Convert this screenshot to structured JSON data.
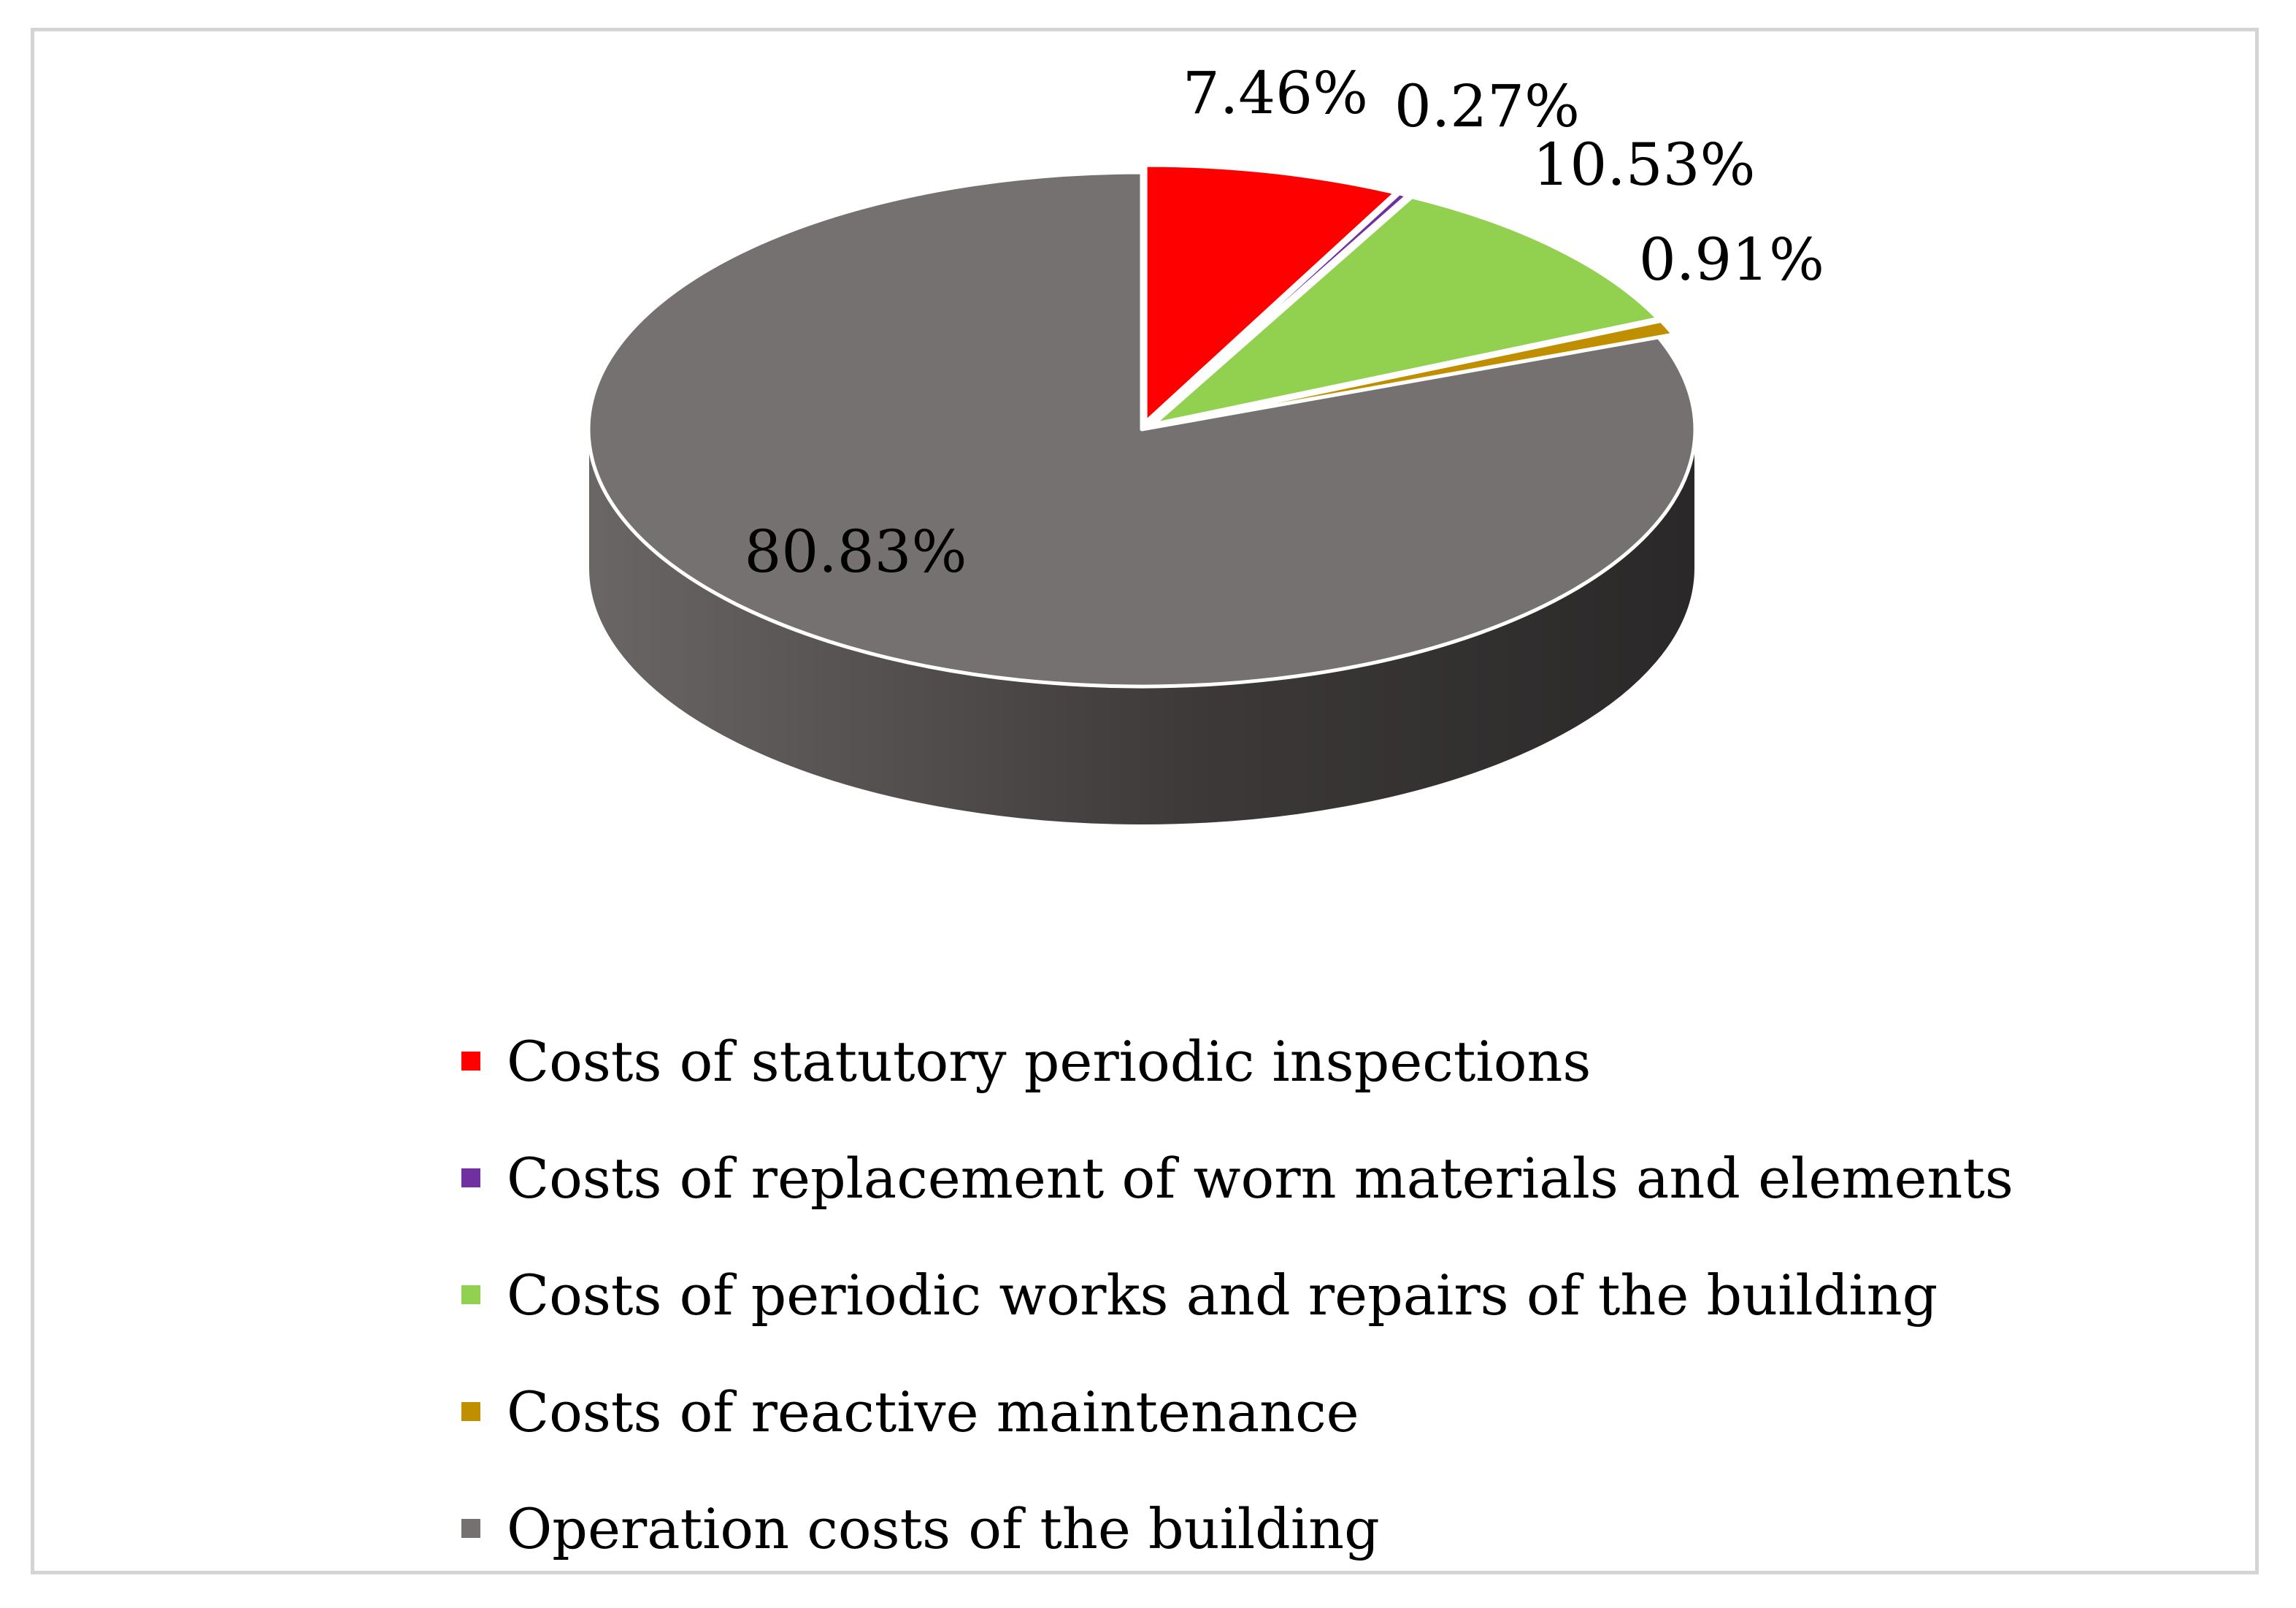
{
  "chart_data": {
    "type": "pie",
    "style": "3d",
    "slices": [
      {
        "label": "Costs of statutory periodic inspections",
        "value": 7.46,
        "display": "7.46%",
        "color": "#ff0000",
        "side": "#b30000",
        "exploded": true
      },
      {
        "label": "Costs of replacement of worn materials and elements",
        "value": 0.27,
        "display": "0.27%",
        "color": "#7030a0",
        "side": "#4a1f6b",
        "exploded": true
      },
      {
        "label": "Costs of periodic works and repairs of the building",
        "value": 10.53,
        "display": "10.53%",
        "color": "#92d050",
        "side": "#5f8a30",
        "exploded": true
      },
      {
        "label": "Costs of reactive maintenance",
        "value": 0.91,
        "display": "0.91%",
        "color": "#bf8f00",
        "side": "#6e5300",
        "exploded": true
      },
      {
        "label": "Operation costs of the building",
        "value": 80.83,
        "display": "80.83%",
        "color": "#767171",
        "side": "#3a3838",
        "exploded": false
      }
    ],
    "legend_position": "bottom",
    "title": ""
  }
}
